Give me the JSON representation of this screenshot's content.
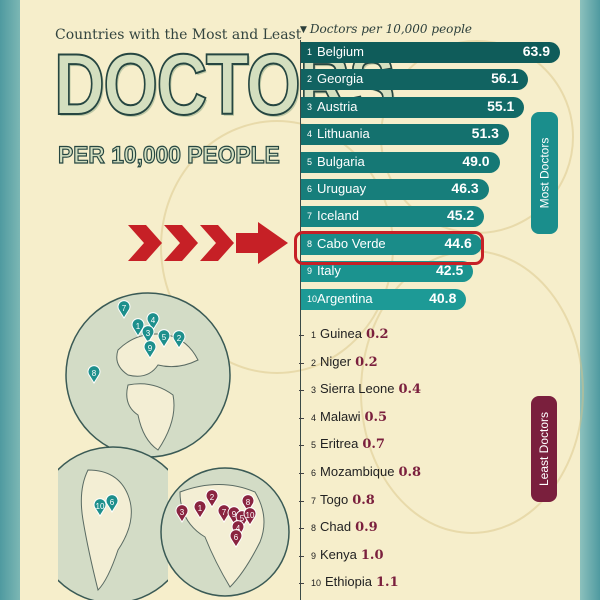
{
  "title": {
    "line1": "Countries with the Most and Least",
    "big": "DOCTORS",
    "sub": "PER 10,000 PEOPLE"
  },
  "tabs": {
    "most": "Most Doctors",
    "least": "Least Doctors"
  },
  "colors": {
    "most_dark": "#0f5c5a",
    "most_light": "#1d9a96",
    "least": "#7a1f3d",
    "highlight": "#c62026",
    "arrow": "#c62026"
  },
  "globe_pins": {
    "europe": [
      "7",
      "1",
      "4",
      "3",
      "5",
      "9",
      "2",
      "8"
    ],
    "south_america": [
      "10",
      "6"
    ],
    "africa": [
      "3",
      "2",
      "1",
      "7",
      "8",
      "9",
      "5",
      "10",
      "4",
      "6"
    ]
  },
  "chart_data": {
    "type": "bar",
    "title": "Countries with the Most and Least DOCTORS PER 10,000 PEOPLE",
    "header": "Doctors per 10,000 people",
    "highlighted": "Cabo Verde",
    "most": [
      {
        "rank": "1",
        "country": "Belgium",
        "value": 63.9
      },
      {
        "rank": "2",
        "country": "Georgia",
        "value": 56.1
      },
      {
        "rank": "3",
        "country": "Austria",
        "value": 55.1
      },
      {
        "rank": "4",
        "country": "Lithuania",
        "value": 51.3
      },
      {
        "rank": "5",
        "country": "Bulgaria",
        "value": 49.0
      },
      {
        "rank": "6",
        "country": "Uruguay",
        "value": 46.3
      },
      {
        "rank": "7",
        "country": "Iceland",
        "value": 45.2
      },
      {
        "rank": "8",
        "country": "Cabo Verde",
        "value": 44.6
      },
      {
        "rank": "9",
        "country": "Italy",
        "value": 42.5
      },
      {
        "rank": "10",
        "country": "Argentina",
        "value": 40.8
      }
    ],
    "least": [
      {
        "rank": "1",
        "country": "Guinea",
        "value": 0.2
      },
      {
        "rank": "2",
        "country": "Niger",
        "value": 0.2
      },
      {
        "rank": "3",
        "country": "Sierra Leone",
        "value": 0.4
      },
      {
        "rank": "4",
        "country": "Malawi",
        "value": 0.5
      },
      {
        "rank": "5",
        "country": "Eritrea",
        "value": 0.7
      },
      {
        "rank": "6",
        "country": "Mozambique",
        "value": 0.8
      },
      {
        "rank": "7",
        "country": "Togo",
        "value": 0.8
      },
      {
        "rank": "8",
        "country": "Chad",
        "value": 0.9
      },
      {
        "rank": "9",
        "country": "Kenya",
        "value": 1.0
      },
      {
        "rank": "10",
        "country": "Ethiopia",
        "value": 1.1
      }
    ]
  }
}
